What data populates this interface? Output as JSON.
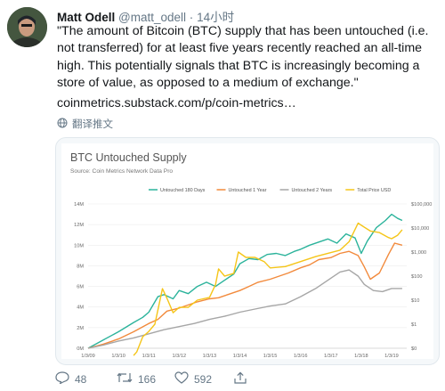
{
  "tweet": {
    "author_name": "Matt Odell",
    "author_handle": "@matt_odell",
    "separator": "·",
    "timestamp": "14小时",
    "text": "\"The amount of Bitcoin (BTC) supply that has been untouched (i.e. not transferred) for at least five years recently reached an all-time high. This potentially signals that BTC is increasingly becoming a store of value, as opposed to a medium of exchange.\"",
    "link": "coinmetrics.substack.com/p/coin-metrics…",
    "translate_label": "翻译推文"
  },
  "actions": {
    "reply_count": "48",
    "retweet_count": "166",
    "like_count": "592"
  },
  "chart_data": {
    "type": "line",
    "title": "BTC Untouched Supply",
    "subtitle": "Source: Coin Metrics Network Data Pro",
    "x_ticks": [
      "1/3/09",
      "1/3/10",
      "1/3/11",
      "1/3/12",
      "1/3/13",
      "1/3/14",
      "1/3/15",
      "1/3/16",
      "1/3/17",
      "1/3/18",
      "1/3/19"
    ],
    "y_left_ticks": [
      "0M",
      "2M",
      "4M",
      "6M",
      "8M",
      "10M",
      "12M",
      "14M"
    ],
    "y_right_ticks": [
      "$0",
      "$1",
      "$10",
      "$100",
      "$1,000",
      "$10,000",
      "$100,000"
    ],
    "ylim_left": [
      0,
      14
    ],
    "grid": true,
    "legend_position": "top",
    "series": [
      {
        "name": "Untouched 180 Days",
        "color": "#2bb39b",
        "axis": "left",
        "x": [
          2009.0,
          2009.5,
          2010.0,
          2010.5,
          2010.8,
          2011.0,
          2011.3,
          2011.5,
          2011.8,
          2012.0,
          2012.3,
          2012.6,
          2012.9,
          2013.2,
          2013.5,
          2013.8,
          2014.0,
          2014.3,
          2014.6,
          2014.9,
          2015.2,
          2015.5,
          2015.8,
          2016.0,
          2016.3,
          2016.6,
          2016.9,
          2017.2,
          2017.5,
          2017.8,
          2018.0,
          2018.2,
          2018.5,
          2018.8,
          2019.0,
          2019.2,
          2019.35
        ],
        "values": [
          0.0,
          0.8,
          1.6,
          2.5,
          3.0,
          3.5,
          5.0,
          5.2,
          4.8,
          5.6,
          5.3,
          6.0,
          6.4,
          6.0,
          6.6,
          7.2,
          8.2,
          8.7,
          8.6,
          9.1,
          9.2,
          9.0,
          9.4,
          9.6,
          10.0,
          10.3,
          10.6,
          10.2,
          11.1,
          10.7,
          9.2,
          10.4,
          11.7,
          12.4,
          13.0,
          12.6,
          12.4
        ]
      },
      {
        "name": "Untouched 1 Year",
        "color": "#f28a3c",
        "axis": "left",
        "x": [
          2009.0,
          2009.5,
          2010.0,
          2010.5,
          2011.0,
          2011.3,
          2011.6,
          2012.0,
          2012.3,
          2012.6,
          2013.0,
          2013.3,
          2013.6,
          2014.0,
          2014.3,
          2014.6,
          2015.0,
          2015.3,
          2015.6,
          2016.0,
          2016.3,
          2016.6,
          2017.0,
          2017.3,
          2017.6,
          2017.9,
          2018.1,
          2018.3,
          2018.6,
          2018.9,
          2019.1,
          2019.35
        ],
        "values": [
          0.0,
          0.4,
          0.9,
          1.6,
          2.4,
          2.8,
          3.6,
          3.9,
          4.2,
          4.5,
          4.8,
          4.9,
          5.2,
          5.6,
          6.0,
          6.4,
          6.7,
          7.0,
          7.3,
          7.8,
          8.1,
          8.6,
          8.8,
          9.2,
          9.4,
          9.0,
          7.9,
          6.7,
          7.3,
          9.1,
          10.2,
          10.0
        ]
      },
      {
        "name": "Untouched 2 Years",
        "color": "#a6a6a6",
        "axis": "left",
        "x": [
          2009.0,
          2009.5,
          2010.0,
          2010.5,
          2011.0,
          2011.5,
          2012.0,
          2012.5,
          2013.0,
          2013.5,
          2014.0,
          2014.5,
          2015.0,
          2015.5,
          2016.0,
          2016.5,
          2017.0,
          2017.3,
          2017.6,
          2017.9,
          2018.1,
          2018.4,
          2018.7,
          2019.0,
          2019.35
        ],
        "values": [
          0.0,
          0.3,
          0.7,
          1.0,
          1.4,
          1.8,
          2.1,
          2.4,
          2.8,
          3.1,
          3.5,
          3.8,
          4.1,
          4.3,
          5.0,
          5.8,
          6.8,
          7.4,
          7.6,
          7.0,
          6.2,
          5.6,
          5.5,
          5.8,
          5.8
        ]
      },
      {
        "name": "Total Price USD",
        "color": "#f5c518",
        "axis": "right",
        "x": [
          2010.5,
          2010.6,
          2010.8,
          2011.0,
          2011.2,
          2011.4,
          2011.45,
          2011.6,
          2011.8,
          2012.0,
          2012.3,
          2012.6,
          2013.0,
          2013.2,
          2013.3,
          2013.5,
          2013.8,
          2013.95,
          2014.2,
          2014.5,
          2014.8,
          2015.0,
          2015.5,
          2016.0,
          2016.5,
          2017.0,
          2017.3,
          2017.6,
          2017.9,
          2018.0,
          2018.3,
          2018.6,
          2018.9,
          2019.0,
          2019.2,
          2019.35
        ],
        "values": [
          0.05,
          0.07,
          0.3,
          0.5,
          1.0,
          15,
          30,
          12,
          3,
          5,
          5,
          10,
          13,
          45,
          200,
          100,
          130,
          1000,
          600,
          600,
          400,
          220,
          250,
          400,
          650,
          950,
          1200,
          2700,
          16000,
          13000,
          7500,
          6500,
          4000,
          3600,
          5000,
          8500
        ]
      }
    ]
  }
}
